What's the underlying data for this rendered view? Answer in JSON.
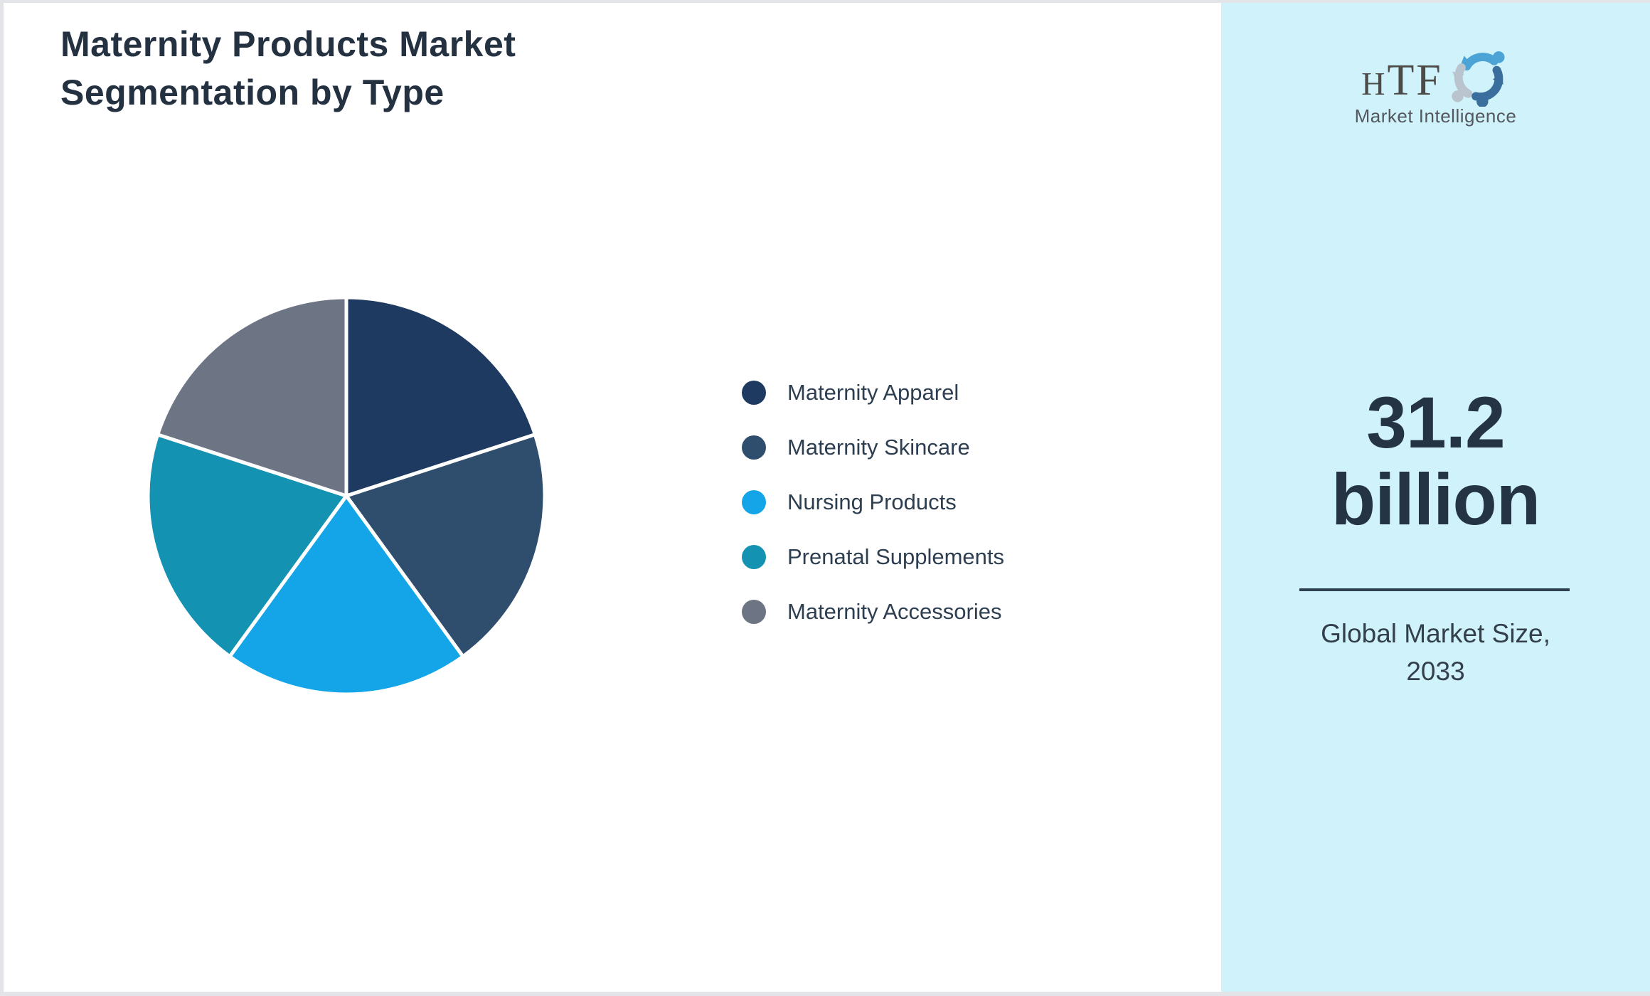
{
  "title": {
    "line1": "Maternity Products Market",
    "line2": "Segmentation by Type",
    "full": "Maternity Products Market Segmentation by Type",
    "color": "#243141"
  },
  "chart_data": {
    "type": "pie",
    "title": "Maternity Products Market Segmentation by Type",
    "labels": [
      "Maternity Apparel",
      "Maternity Skincare",
      "Nursing Products",
      "Prenatal Supplements",
      "Maternity Accessories"
    ],
    "values": [
      20,
      20,
      20,
      20,
      20
    ],
    "unit": "percent",
    "colors": [
      "#1e3a61",
      "#2f4d6d",
      "#14a5e8",
      "#1492b2",
      "#6d7584"
    ],
    "start_angle_deg": -90,
    "direction": "clockwise",
    "slice_gap_color": "#ffffff",
    "legend_position": "right"
  },
  "side_panel": {
    "background": "#d0f3fb",
    "logo": {
      "abbr_h": "H",
      "abbr_tf": "TF",
      "subtitle": "Market Intelligence",
      "icon": "three-figure-swirl-icon",
      "icon_colors": [
        "#4ba3d6",
        "#b9c4ce",
        "#3a6e9c"
      ]
    },
    "value_line1": "31.2",
    "value_line2": "billion",
    "caption_line1": "Global Market Size,",
    "caption_line2": "2033",
    "divider_color": "#2d4051"
  }
}
